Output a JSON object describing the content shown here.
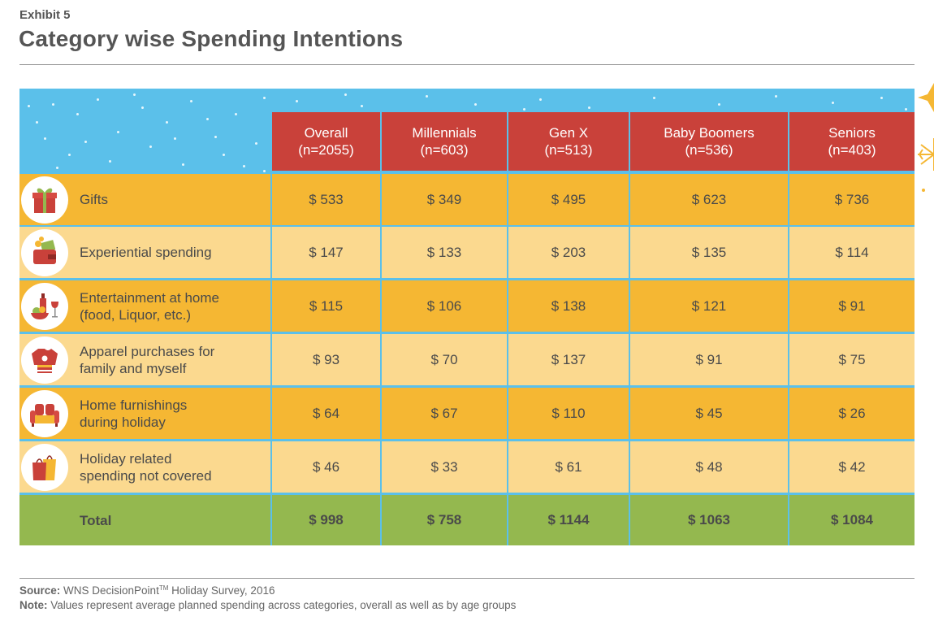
{
  "exhibit": "Exhibit 5",
  "title": "Category wise Spending Intentions",
  "chart_data": {
    "type": "table",
    "columns": [
      {
        "name": "Overall",
        "n": "(n=2055)"
      },
      {
        "name": "Millennials",
        "n": "(n=603)"
      },
      {
        "name": "Gen X",
        "n": "(n=513)"
      },
      {
        "name": "Baby Boomers",
        "n": "(n=536)"
      },
      {
        "name": "Seniors",
        "n": "(n=403)"
      }
    ],
    "rows": [
      {
        "label1": "Gifts",
        "label2": "",
        "icon": "gift-icon",
        "values": [
          "$ 533",
          "$ 349",
          "$ 495",
          "$ 623",
          "$ 736"
        ]
      },
      {
        "label1": "Experiential spending",
        "label2": "",
        "icon": "wallet-icon",
        "values": [
          "$ 147",
          "$ 133",
          "$ 203",
          "$ 135",
          "$ 114"
        ]
      },
      {
        "label1": "Entertainment at home",
        "label2": "(food, Liquor, etc.)",
        "icon": "food-wine-icon",
        "values": [
          "$ 115",
          "$ 106",
          "$ 138",
          "$ 121",
          "$ 91"
        ]
      },
      {
        "label1": "Apparel purchases for",
        "label2": "family and myself",
        "icon": "sweater-icon",
        "values": [
          "$ 93",
          "$ 70",
          "$ 137",
          "$ 91",
          "$ 75"
        ]
      },
      {
        "label1": "Home furnishings",
        "label2": "during holiday",
        "icon": "sofa-icon",
        "values": [
          "$ 64",
          "$ 67",
          "$ 110",
          "$ 45",
          "$ 26"
        ]
      },
      {
        "label1": "Holiday related",
        "label2": "spending not covered",
        "icon": "shopping-bags-icon",
        "values": [
          "$ 46",
          "$ 33",
          "$ 61",
          "$ 48",
          "$ 42"
        ]
      }
    ],
    "total": {
      "label": "Total",
      "values": [
        "$ 998",
        "$ 758",
        "$ 1144",
        "$ 1063",
        "$ 1084"
      ]
    }
  },
  "footer": {
    "source_label": "Source:",
    "source_text": "WNS DecisionPoint",
    "source_tm": "TM",
    "source_tail": " Holiday Survey, 2016",
    "note_label": "Note:",
    "note_text": " Values represent average planned spending across categories, overall as well as by age groups"
  },
  "colors": {
    "header": "#c9413a",
    "row_dark": "#f5b733",
    "row_light": "#fbd98f",
    "total": "#94b84f",
    "sky": "#5bc0ea"
  }
}
